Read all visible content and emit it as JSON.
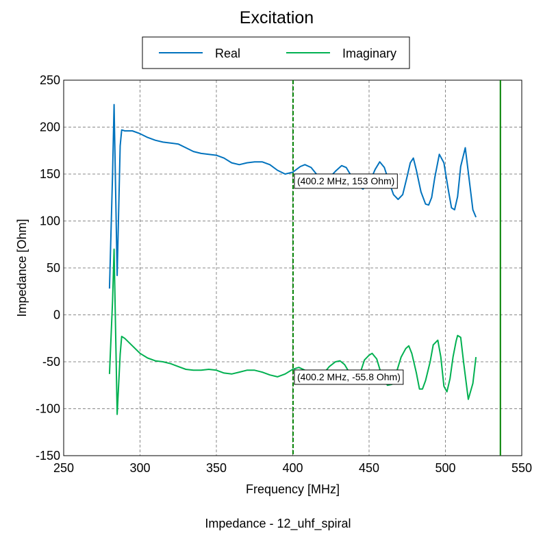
{
  "caption": "Impedance - 12_uhf_spiral",
  "chart_data": {
    "type": "line",
    "title": "Excitation",
    "xlabel": "Frequency [MHz]",
    "ylabel": "Impedance [Ohm]",
    "xlim": [
      250,
      550
    ],
    "ylim": [
      -150,
      250
    ],
    "xticks": [
      250,
      300,
      350,
      400,
      450,
      500,
      550
    ],
    "yticks": [
      -150,
      -100,
      -50,
      0,
      50,
      100,
      150,
      200,
      250
    ],
    "grid": true,
    "legend": {
      "placement": "top-center",
      "entries": [
        "Real",
        "Imaginary"
      ]
    },
    "series": [
      {
        "name": "Real",
        "color": "#0072bd",
        "points": [
          [
            280,
            28
          ],
          [
            282,
            150
          ],
          [
            283,
            224
          ],
          [
            285,
            42
          ],
          [
            287,
            180
          ],
          [
            288,
            197
          ],
          [
            290,
            196
          ],
          [
            295,
            196
          ],
          [
            300,
            193
          ],
          [
            305,
            189
          ],
          [
            310,
            186
          ],
          [
            315,
            184
          ],
          [
            320,
            183
          ],
          [
            325,
            182
          ],
          [
            330,
            178
          ],
          [
            335,
            174
          ],
          [
            340,
            172
          ],
          [
            345,
            171
          ],
          [
            350,
            170
          ],
          [
            355,
            167
          ],
          [
            360,
            162
          ],
          [
            365,
            160
          ],
          [
            370,
            162
          ],
          [
            375,
            163
          ],
          [
            380,
            163
          ],
          [
            385,
            160
          ],
          [
            390,
            154
          ],
          [
            395,
            150
          ],
          [
            400,
            152
          ],
          [
            405,
            158
          ],
          [
            408,
            160
          ],
          [
            412,
            157
          ],
          [
            416,
            149
          ],
          [
            420,
            141
          ],
          [
            424,
            146
          ],
          [
            428,
            153
          ],
          [
            432,
            159
          ],
          [
            435,
            157
          ],
          [
            438,
            149
          ],
          [
            442,
            138
          ],
          [
            446,
            134
          ],
          [
            450,
            140
          ],
          [
            454,
            155
          ],
          [
            457,
            163
          ],
          [
            460,
            157
          ],
          [
            463,
            142
          ],
          [
            466,
            128
          ],
          [
            469,
            123
          ],
          [
            472,
            128
          ],
          [
            475,
            148
          ],
          [
            477,
            162
          ],
          [
            479,
            167
          ],
          [
            481,
            154
          ],
          [
            484,
            131
          ],
          [
            487,
            118
          ],
          [
            489,
            117
          ],
          [
            491,
            125
          ],
          [
            493,
            146
          ],
          [
            496,
            171
          ],
          [
            499,
            162
          ],
          [
            502,
            132
          ],
          [
            504,
            114
          ],
          [
            506,
            112
          ],
          [
            508,
            126
          ],
          [
            510,
            158
          ],
          [
            513,
            178
          ],
          [
            515,
            152
          ],
          [
            518,
            112
          ],
          [
            520,
            104
          ]
        ]
      },
      {
        "name": "Imaginary",
        "color": "#00b050",
        "points": [
          [
            280,
            -63
          ],
          [
            282,
            15
          ],
          [
            283,
            70
          ],
          [
            285,
            -106
          ],
          [
            287,
            -42
          ],
          [
            288,
            -23
          ],
          [
            290,
            -25
          ],
          [
            295,
            -33
          ],
          [
            300,
            -41
          ],
          [
            305,
            -46
          ],
          [
            310,
            -49
          ],
          [
            315,
            -50
          ],
          [
            320,
            -52
          ],
          [
            325,
            -55
          ],
          [
            330,
            -58
          ],
          [
            335,
            -59
          ],
          [
            340,
            -59
          ],
          [
            345,
            -58
          ],
          [
            350,
            -59
          ],
          [
            355,
            -62
          ],
          [
            360,
            -63
          ],
          [
            365,
            -61
          ],
          [
            370,
            -59
          ],
          [
            375,
            -59
          ],
          [
            380,
            -61
          ],
          [
            385,
            -64
          ],
          [
            390,
            -66
          ],
          [
            395,
            -63
          ],
          [
            400,
            -58
          ],
          [
            404,
            -56
          ],
          [
            408,
            -59
          ],
          [
            412,
            -65
          ],
          [
            416,
            -68
          ],
          [
            420,
            -63
          ],
          [
            424,
            -55
          ],
          [
            428,
            -50
          ],
          [
            431,
            -49
          ],
          [
            434,
            -53
          ],
          [
            438,
            -64
          ],
          [
            441,
            -70
          ],
          [
            444,
            -63
          ],
          [
            447,
            -48
          ],
          [
            450,
            -43
          ],
          [
            452,
            -41
          ],
          [
            455,
            -47
          ],
          [
            458,
            -63
          ],
          [
            462,
            -75
          ],
          [
            465,
            -74
          ],
          [
            468,
            -61
          ],
          [
            471,
            -45
          ],
          [
            474,
            -36
          ],
          [
            476,
            -33
          ],
          [
            478,
            -41
          ],
          [
            481,
            -62
          ],
          [
            483,
            -79
          ],
          [
            485,
            -79
          ],
          [
            487,
            -70
          ],
          [
            490,
            -50
          ],
          [
            492,
            -32
          ],
          [
            495,
            -27
          ],
          [
            497,
            -45
          ],
          [
            499,
            -76
          ],
          [
            501,
            -82
          ],
          [
            503,
            -68
          ],
          [
            505,
            -45
          ],
          [
            507,
            -28
          ],
          [
            508,
            -22
          ],
          [
            510,
            -24
          ],
          [
            512,
            -52
          ],
          [
            515,
            -90
          ],
          [
            518,
            -73
          ],
          [
            520,
            -45
          ]
        ]
      }
    ],
    "markers": [
      {
        "x": 400.2,
        "style": "dashed",
        "color": "#008000"
      },
      {
        "x": 536,
        "style": "solid",
        "color": "#008000"
      }
    ],
    "annotations": [
      {
        "text": "(400.2 MHz, 153 Ohm)",
        "x": 400.2,
        "y": 153
      },
      {
        "text": "(400.2 MHz, -55.8 Ohm)",
        "x": 400.2,
        "y": -55.8
      }
    ]
  }
}
